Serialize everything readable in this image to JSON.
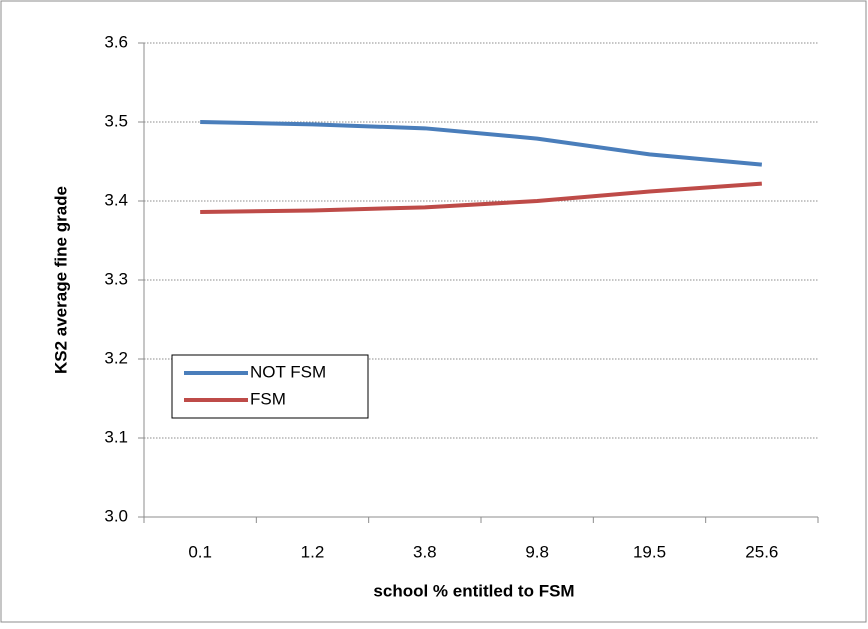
{
  "chart_data": {
    "type": "line",
    "x_label": "school % entitled to FSM",
    "y_label": "KS2 average fine grade",
    "categories": [
      "0.1",
      "1.2",
      "3.8",
      "9.8",
      "19.5",
      "25.6"
    ],
    "series": [
      {
        "name": "NOT FSM",
        "color": "#4a7ebb",
        "values": [
          3.5,
          3.497,
          3.492,
          3.479,
          3.459,
          3.446
        ]
      },
      {
        "name": "FSM",
        "color": "#be4b48",
        "values": [
          3.386,
          3.388,
          3.392,
          3.4,
          3.412,
          3.422
        ]
      }
    ],
    "ylim": [
      3.0,
      3.6
    ],
    "yticks": [
      {
        "value": 3.0,
        "label": "3.0"
      },
      3.1,
      3.2,
      3.3,
      3.4,
      3.5,
      3.6
    ],
    "grid": true,
    "legend": "lower-left"
  }
}
